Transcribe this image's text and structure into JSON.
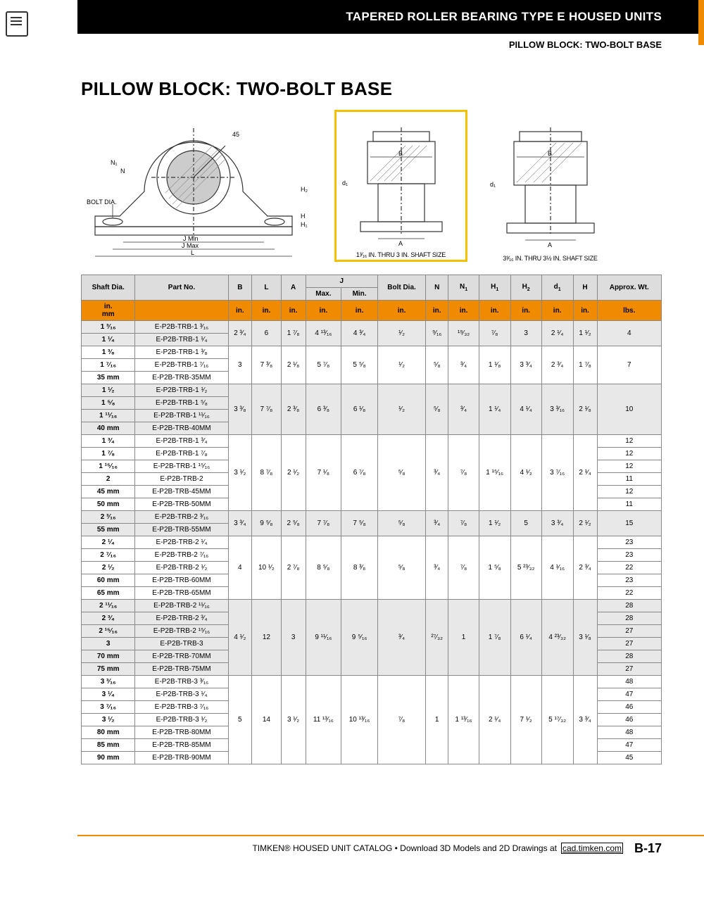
{
  "colors": {
    "accent": "#f08a00",
    "highlight": "#f3c100",
    "header_bg": "#000000",
    "header_fg": "#ffffff",
    "row_grey": "#e8e8e8",
    "row_white": "#ffffff",
    "border": "#888888"
  },
  "header": {
    "title": "TAPERED ROLLER BEARING TYPE E HOUSED UNITS",
    "subtitle": "PILLOW BLOCK: TWO-BOLT BASE"
  },
  "section_title": "PILLOW BLOCK: TWO-BOLT BASE",
  "diagrams": {
    "main_labels": [
      "45",
      "N₁",
      "N",
      "BOLT DIA.",
      "H₂",
      "H",
      "H₁",
      "J Min",
      "J Max",
      "L"
    ],
    "side_labels": [
      "d₁",
      "B",
      "A"
    ],
    "caption_a": "1³⁄₁₆ IN. THRU 3 IN. SHAFT SIZE",
    "caption_b": "3³⁄₁₆ IN. THRU 3½ IN. SHAFT SIZE"
  },
  "table": {
    "columns": [
      "Shaft Dia.",
      "Part No.",
      "B",
      "L",
      "A",
      "J Max.",
      "J Min.",
      "Bolt Dia.",
      "N",
      "N₁",
      "H₁",
      "H₂",
      "d₁",
      "H",
      "Approx. Wt."
    ],
    "unit_row": [
      "in. / mm",
      "",
      "in.",
      "in.",
      "in.",
      "in.",
      "in.",
      "in.",
      "in.",
      "in.",
      "in.",
      "in.",
      "in.",
      "in.",
      "lbs."
    ],
    "groups": [
      {
        "bg": "g",
        "rows": [
          [
            "1 ³⁄₁₆",
            "E-P2B-TRB-1 ³⁄₁₆"
          ],
          [
            "1 ¹⁄₄",
            "E-P2B-TRB-1 ¹⁄₄"
          ]
        ],
        "values": [
          "2 ³⁄₄",
          "6",
          "1 ⁷⁄₈",
          "4 ¹³⁄₁₆",
          "4 ³⁄₄",
          "¹⁄₂",
          "⁹⁄₁₆",
          "¹⁹⁄₃₂",
          "⁷⁄₈",
          "3",
          "2 ¹⁄₄",
          "1 ¹⁄₂"
        ],
        "wt": [
          "4",
          "4"
        ]
      },
      {
        "bg": "w",
        "rows": [
          [
            "1 ³⁄₈",
            "E-P2B-TRB-1 ³⁄₈"
          ],
          [
            "1 ⁷⁄₁₆",
            "E-P2B-TRB-1 ⁷⁄₁₆"
          ],
          [
            "35 mm",
            "E-P2B-TRB-35MM"
          ]
        ],
        "values": [
          "3",
          "7 ³⁄₈",
          "2 ¹⁄₈",
          "5 ⁷⁄₈",
          "5 ⁵⁄₈",
          "¹⁄₂",
          "⁵⁄₈",
          "³⁄₄",
          "1 ¹⁄₈",
          "3 ³⁄₄",
          "2 ³⁄₄",
          "1 ⁷⁄₈"
        ],
        "wt": [
          "7",
          "7",
          "7"
        ]
      },
      {
        "bg": "g",
        "rows": [
          [
            "1 ¹⁄₂",
            "E-P2B-TRB-1 ¹⁄₂"
          ],
          [
            "1 ⁵⁄₈",
            "E-P2B-TRB-1 ⁵⁄₈"
          ],
          [
            "1 ¹¹⁄₁₆",
            "E-P2B-TRB-1 ¹¹⁄₁₆"
          ],
          [
            "40 mm",
            "E-P2B-TRB-40MM"
          ]
        ],
        "values": [
          "3 ³⁄₈",
          "7 ⁷⁄₈",
          "2 ³⁄₈",
          "6 ³⁄₈",
          "6 ¹⁄₈",
          "¹⁄₂",
          "⁵⁄₈",
          "³⁄₄",
          "1 ¹⁄₄",
          "4 ¹⁄₄",
          "3 ³⁄₁₆",
          "2 ¹⁄₈"
        ],
        "wt": [
          "10",
          "10",
          "10",
          "10"
        ]
      },
      {
        "bg": "w",
        "rows": [
          [
            "1 ³⁄₄",
            "E-P2B-TRB-1 ³⁄₄"
          ],
          [
            "1 ⁷⁄₈",
            "E-P2B-TRB-1 ⁷⁄₈"
          ],
          [
            "1 ¹⁵⁄₁₆",
            "E-P2B-TRB-1 ¹⁵⁄₁₆"
          ],
          [
            "2",
            "E-P2B-TRB-2"
          ],
          [
            "45 mm",
            "E-P2B-TRB-45MM"
          ],
          [
            "50 mm",
            "E-P2B-TRB-50MM"
          ]
        ],
        "values": [
          "3 ¹⁄₂",
          "8 ⁷⁄₈",
          "2 ¹⁄₂",
          "7 ¹⁄₈",
          "6 ⁷⁄₈",
          "⁵⁄₈",
          "³⁄₄",
          "⁷⁄₈",
          "1 ¹⁵⁄₁₆",
          "4 ¹⁄₂",
          "3 ⁷⁄₁₆",
          "2 ¹⁄₄"
        ],
        "wt": [
          "12",
          "12",
          "12",
          "11",
          "12",
          "11"
        ]
      },
      {
        "bg": "g",
        "rows": [
          [
            "2 ³⁄₁₆",
            "E-P2B-TRB-2 ³⁄₁₆"
          ],
          [
            "55 mm",
            "E-P2B-TRB-55MM"
          ]
        ],
        "values": [
          "3 ³⁄₄",
          "9 ⁵⁄₈",
          "2 ⁵⁄₈",
          "7 ⁷⁄₈",
          "7 ⁵⁄₈",
          "⁵⁄₈",
          "³⁄₄",
          "⁷⁄₈",
          "1 ¹⁄₂",
          "5",
          "3 ³⁄₄",
          "2 ¹⁄₂"
        ],
        "wt": [
          "15",
          "15"
        ]
      },
      {
        "bg": "w",
        "rows": [
          [
            "2 ¹⁄₄",
            "E-P2B-TRB-2 ¹⁄₄"
          ],
          [
            "2 ⁷⁄₁₆",
            "E-P2B-TRB-2 ⁷⁄₁₆"
          ],
          [
            "2 ¹⁄₂",
            "E-P2B-TRB-2 ¹⁄₂"
          ],
          [
            "60 mm",
            "E-P2B-TRB-60MM"
          ],
          [
            "65 mm",
            "E-P2B-TRB-65MM"
          ]
        ],
        "values": [
          "4",
          "10 ¹⁄₂",
          "2 ⁷⁄₈",
          "8 ⁵⁄₈",
          "8 ³⁄₈",
          "⁵⁄₈",
          "³⁄₄",
          "⁷⁄₈",
          "1 ⁵⁄₈",
          "5 ²³⁄₃₂",
          "4 ¹⁄₁₆",
          "2 ³⁄₄"
        ],
        "wt": [
          "23",
          "23",
          "22",
          "23",
          "22"
        ]
      },
      {
        "bg": "g",
        "rows": [
          [
            "2 ¹¹⁄₁₆",
            "E-P2B-TRB-2 ¹¹⁄₁₆"
          ],
          [
            "2 ³⁄₄",
            "E-P2B-TRB-2 ³⁄₄"
          ],
          [
            "2 ¹⁵⁄₁₆",
            "E-P2B-TRB-2 ¹⁵⁄₁₆"
          ],
          [
            "3",
            "E-P2B-TRB-3"
          ],
          [
            "70 mm",
            "E-P2B-TRB-70MM"
          ],
          [
            "75 mm",
            "E-P2B-TRB-75MM"
          ]
        ],
        "values": [
          "4 ¹⁄₂",
          "12",
          "3",
          "9 ¹¹⁄₁₆",
          "9 ⁵⁄₁₆",
          "³⁄₄",
          "²⁷⁄₃₂",
          "1",
          "1 ⁷⁄₈",
          "6 ¹⁄₄",
          "4 ²³⁄₃₂",
          "3 ¹⁄₈"
        ],
        "wt": [
          "28",
          "28",
          "27",
          "27",
          "28",
          "27"
        ]
      },
      {
        "bg": "w",
        "rows": [
          [
            "3 ³⁄₁₆",
            "E-P2B-TRB-3 ³⁄₁₆"
          ],
          [
            "3 ¹⁄₄",
            "E-P2B-TRB-3 ¹⁄₄"
          ],
          [
            "3 ⁷⁄₁₆",
            "E-P2B-TRB-3 ⁷⁄₁₆"
          ],
          [
            "3 ¹⁄₂",
            "E-P2B-TRB-3 ¹⁄₂"
          ],
          [
            "80 mm",
            "E-P2B-TRB-80MM"
          ],
          [
            "85 mm",
            "E-P2B-TRB-85MM"
          ],
          [
            "90 mm",
            "E-P2B-TRB-90MM"
          ]
        ],
        "values": [
          "5",
          "14",
          "3 ¹⁄₂",
          "11 ¹³⁄₁₆",
          "10 ¹³⁄₁₆",
          "⁷⁄₈",
          "1",
          "1 ¹³⁄₁₆",
          "2 ¹⁄₄",
          "7 ¹⁄₂",
          "5 ¹⁷⁄₃₂",
          "3 ³⁄₄"
        ],
        "wt": [
          "48",
          "47",
          "46",
          "46",
          "48",
          "47",
          "45"
        ]
      }
    ]
  },
  "footer": {
    "text": "TIMKEN® HOUSED UNIT CATALOG • Download 3D Models and 2D Drawings at",
    "link": "cad.timken.com",
    "page": "B-17"
  }
}
